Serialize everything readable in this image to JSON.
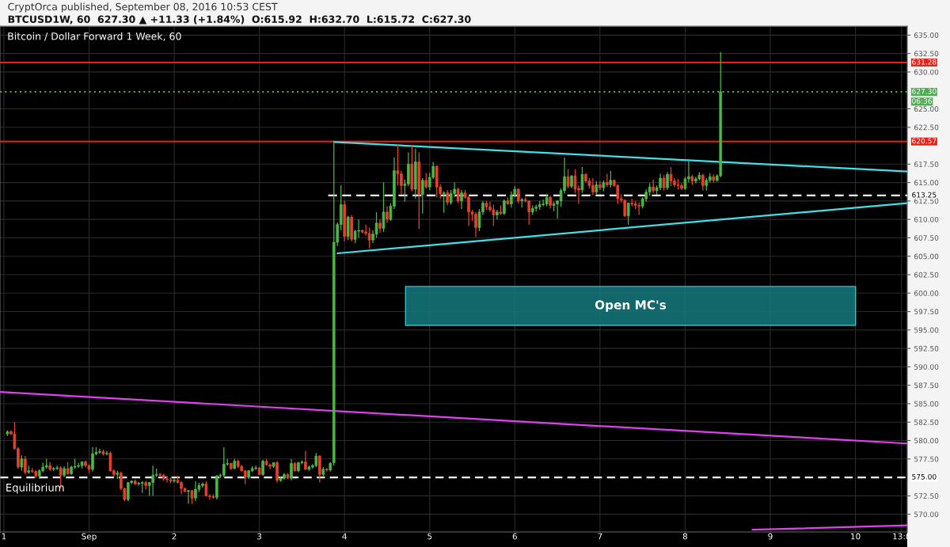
{
  "chart_data": {
    "type": "candlestick",
    "title": "Bitcoin / Dollar Forward 1 Week, 60",
    "subtitle": "CryptOrca published, September 08, 2016 10:53 CEST",
    "annotations": [
      "BTCUSD1W, 60  627.30 ▲ +11.33 (+1.84%)  O:615.92  H:632.70  L:615.72  C:627.30",
      "Equilibrium",
      "06:36",
      "Open MC's"
    ],
    "colors": [
      "#4cb648",
      "#e5412f",
      "#e5412f",
      "#e5412f",
      "#4cb648",
      "#e5412f",
      "#4cb648",
      "#e5412f",
      "#e5412f",
      "#4cb648",
      "#4cb648",
      "#4cb648",
      "#e5412f",
      "#4cb648",
      "#4cb648",
      "#e5412f",
      "#4cb648",
      "#e5412f",
      "#4cb648",
      "#4cb648",
      "#4cb648",
      "#4cb648",
      "#e5412f",
      "#e5412f",
      "#4cb648",
      "#4cb648",
      "#4cb648",
      "#e5412f",
      "#4cb648",
      "#e5412f",
      "#e5412f",
      "#4cb648",
      "#e5412f",
      "#e5412f",
      "#4cb648",
      "#4cb648",
      "#e5412f",
      "#4cb648",
      "#4cb648",
      "#e5412f",
      "#4cb648",
      "#4cb648",
      "#4cb648",
      "#e5412f",
      "#e5412f",
      "#e5412f",
      "#e5412f",
      "#4cb648",
      "#e5412f",
      "#e5412f",
      "#e5412f",
      "#4cb648",
      "#e5412f",
      "#4cb648",
      "#4cb648",
      "#4cb648",
      "#e5412f",
      "#e5412f",
      "#e5412f",
      "#4cb648",
      "#4cb648",
      "#4cb648",
      "#4cb648",
      "#e5412f",
      "#4cb648",
      "#e5412f",
      "#e5412f",
      "#e5412f",
      "#4cb648",
      "#4cb648",
      "#4cb648",
      "#e5412f",
      "#4cb648",
      "#e5412f",
      "#e5412f",
      "#4cb648",
      "#e5412f",
      "#4cb648",
      "#4cb648",
      "#e5412f",
      "#4cb648",
      "#e5412f",
      "#4cb648",
      "#4cb648",
      "#e5412f",
      "#4cb648",
      "#4cb648",
      "#4cb648",
      "#e5412f",
      "#4cb648",
      "#e5412f",
      "#4cb648",
      "#4cb648",
      "#4cb648",
      "#4cb648",
      "#e5412f",
      "#4cb648",
      "#e5412f",
      "#4cb648",
      "#4cb648",
      "#e5412f",
      "#e5412f",
      "#e5412f",
      "#4cb648",
      "#4cb648",
      "#e5412f",
      "#4cb648",
      "#e5412f",
      "#4cb648",
      "#4cb648",
      "#e5412f",
      "#e5412f",
      "#4cb648",
      "#4cb648",
      "#e5412f",
      "#4cb648",
      "#e5412f",
      "#4cb648",
      "#e5412f",
      "#4cb648",
      "#4cb648",
      "#e5412f",
      "#e5412f",
      "#4cb648",
      "#e5412f",
      "#4cb648",
      "#4cb648",
      "#e5412f",
      "#4cb648",
      "#e5412f",
      "#e5412f",
      "#e5412f",
      "#e5412f",
      "#4cb648",
      "#4cb648",
      "#e5412f",
      "#e5412f",
      "#e5412f",
      "#4cb648",
      "#e5412f",
      "#4cb648",
      "#e5412f",
      "#4cb648",
      "#4cb648",
      "#e5412f",
      "#4cb648",
      "#e5412f",
      "#e5412f",
      "#4cb648",
      "#4cb648",
      "#4cb648",
      "#4cb648",
      "#4cb648",
      "#e5412f",
      "#4cb648",
      "#4cb648",
      "#4cb648",
      "#4cb648",
      "#e5412f",
      "#4cb648",
      "#e5412f",
      "#e5412f",
      "#4cb648",
      "#e5412f",
      "#e5412f",
      "#e5412f",
      "#4cb648",
      "#e5412f",
      "#4cb648",
      "#e5412f",
      "#4cb648",
      "#e5412f",
      "#e5412f",
      "#e5412f",
      "#e5412f",
      "#4cb648",
      "#e5412f",
      "#e5412f",
      "#e5412f",
      "#4cb648",
      "#4cb648",
      "#4cb648",
      "#e5412f",
      "#4cb648",
      "#4cb648",
      "#e5412f",
      "#4cb648",
      "#e5412f",
      "#e5412f",
      "#e5412f",
      "#e5412f",
      "#4cb648",
      "#4cb648",
      "#e5412f",
      "#4cb648",
      "#4cb648",
      "#e5412f",
      "#4cb648",
      "#4cb648",
      "#e5412f",
      "#4cb648",
      "#4cb648"
    ],
    "x": [
      "2016-08-31T01:00",
      "2016-08-31T02:00",
      "2016-08-31T03:00",
      "2016-08-31T04:00",
      "2016-08-31T05:00",
      "2016-08-31T06:00",
      "2016-08-31T07:00",
      "2016-08-31T08:00",
      "2016-08-31T09:00",
      "2016-08-31T10:00",
      "2016-08-31T11:00",
      "2016-08-31T12:00",
      "2016-08-31T13:00",
      "2016-08-31T14:00",
      "2016-08-31T15:00",
      "2016-08-31T16:00",
      "2016-08-31T17:00",
      "2016-08-31T18:00",
      "2016-08-31T19:00",
      "2016-08-31T20:00",
      "2016-08-31T21:00",
      "2016-08-31T22:00",
      "2016-08-31T23:00",
      "2016-09-01T00:00",
      "2016-09-01T01:00",
      "2016-09-01T02:00",
      "2016-09-01T03:00",
      "2016-09-01T04:00",
      "2016-09-01T05:00",
      "2016-09-01T06:00",
      "2016-09-01T07:00",
      "2016-09-01T08:00",
      "2016-09-01T09:00",
      "2016-09-01T10:00",
      "2016-09-01T11:00",
      "2016-09-01T12:00",
      "2016-09-01T13:00",
      "2016-09-01T14:00",
      "2016-09-01T15:00",
      "2016-09-01T16:00",
      "2016-09-01T17:00",
      "2016-09-01T18:00",
      "2016-09-01T19:00",
      "2016-09-01T20:00",
      "2016-09-01T21:00",
      "2016-09-01T22:00",
      "2016-09-01T23:00",
      "2016-09-02T00:00",
      "2016-09-02T01:00",
      "2016-09-02T02:00",
      "2016-09-02T03:00",
      "2016-09-02T04:00",
      "2016-09-02T05:00",
      "2016-09-02T06:00",
      "2016-09-02T07:00",
      "2016-09-02T08:00",
      "2016-09-02T09:00",
      "2016-09-02T10:00",
      "2016-09-02T11:00",
      "2016-09-02T12:00",
      "2016-09-02T13:00",
      "2016-09-02T14:00",
      "2016-09-02T15:00",
      "2016-09-02T16:00",
      "2016-09-02T17:00",
      "2016-09-02T18:00",
      "2016-09-02T19:00",
      "2016-09-02T20:00",
      "2016-09-02T21:00",
      "2016-09-02T22:00",
      "2016-09-02T23:00",
      "2016-09-03T00:00",
      "2016-09-03T01:00",
      "2016-09-03T02:00",
      "2016-09-03T03:00",
      "2016-09-03T04:00",
      "2016-09-03T05:00",
      "2016-09-03T06:00",
      "2016-09-03T07:00",
      "2016-09-03T08:00",
      "2016-09-03T09:00",
      "2016-09-03T10:00",
      "2016-09-03T11:00",
      "2016-09-03T12:00",
      "2016-09-03T13:00",
      "2016-09-03T14:00",
      "2016-09-03T15:00",
      "2016-09-03T16:00",
      "2016-09-03T17:00",
      "2016-09-03T18:00",
      "2016-09-03T19:00",
      "2016-09-03T20:00",
      "2016-09-03T21:00",
      "2016-09-03T22:00",
      "2016-09-03T23:00",
      "2016-09-04T00:00",
      "2016-09-04T01:00",
      "2016-09-04T02:00",
      "2016-09-04T03:00",
      "2016-09-04T04:00",
      "2016-09-04T05:00",
      "2016-09-04T06:00",
      "2016-09-04T07:00",
      "2016-09-04T08:00",
      "2016-09-04T09:00",
      "2016-09-04T10:00",
      "2016-09-04T11:00",
      "2016-09-04T12:00",
      "2016-09-04T13:00",
      "2016-09-04T14:00",
      "2016-09-04T15:00",
      "2016-09-04T16:00",
      "2016-09-04T17:00",
      "2016-09-04T18:00",
      "2016-09-04T19:00",
      "2016-09-04T20:00",
      "2016-09-04T21:00",
      "2016-09-04T22:00",
      "2016-09-04T23:00",
      "2016-09-05T00:00",
      "2016-09-05T01:00",
      "2016-09-05T02:00",
      "2016-09-05T03:00",
      "2016-09-05T04:00",
      "2016-09-05T05:00",
      "2016-09-05T06:00",
      "2016-09-05T07:00",
      "2016-09-05T08:00",
      "2016-09-05T09:00",
      "2016-09-05T10:00",
      "2016-09-05T11:00",
      "2016-09-05T12:00",
      "2016-09-05T13:00",
      "2016-09-05T14:00",
      "2016-09-05T15:00",
      "2016-09-05T16:00",
      "2016-09-05T17:00",
      "2016-09-05T18:00",
      "2016-09-05T19:00",
      "2016-09-05T20:00",
      "2016-09-05T21:00",
      "2016-09-05T22:00",
      "2016-09-05T23:00",
      "2016-09-06T00:00",
      "2016-09-06T01:00",
      "2016-09-06T02:00",
      "2016-09-06T03:00",
      "2016-09-06T04:00",
      "2016-09-06T05:00",
      "2016-09-06T06:00",
      "2016-09-06T07:00",
      "2016-09-06T08:00",
      "2016-09-06T09:00",
      "2016-09-06T10:00",
      "2016-09-06T11:00",
      "2016-09-06T12:00",
      "2016-09-06T13:00",
      "2016-09-06T14:00",
      "2016-09-06T15:00",
      "2016-09-06T16:00",
      "2016-09-06T17:00",
      "2016-09-06T18:00",
      "2016-09-06T19:00",
      "2016-09-06T20:00",
      "2016-09-06T21:00",
      "2016-09-06T22:00",
      "2016-09-06T23:00",
      "2016-09-07T00:00",
      "2016-09-07T01:00",
      "2016-09-07T02:00",
      "2016-09-07T03:00",
      "2016-09-07T04:00",
      "2016-09-07T05:00",
      "2016-09-07T06:00",
      "2016-09-07T07:00",
      "2016-09-07T08:00",
      "2016-09-07T09:00",
      "2016-09-07T10:00",
      "2016-09-07T11:00",
      "2016-09-07T12:00",
      "2016-09-07T13:00",
      "2016-09-07T14:00",
      "2016-09-07T15:00",
      "2016-09-07T16:00",
      "2016-09-07T17:00",
      "2016-09-07T18:00",
      "2016-09-07T19:00",
      "2016-09-07T20:00",
      "2016-09-07T21:00",
      "2016-09-07T22:00",
      "2016-09-07T23:00",
      "2016-09-08T00:00",
      "2016-09-08T01:00",
      "2016-09-08T02:00",
      "2016-09-08T03:00",
      "2016-09-08T04:00",
      "2016-09-08T05:00",
      "2016-09-08T06:00",
      "2016-09-08T07:00",
      "2016-09-08T08:00",
      "2016-09-08T09:00",
      "2016-09-08T10:00"
    ],
    "ohlc": [
      [
        580.9,
        581.4,
        580.6,
        581.2
      ],
      [
        581.2,
        581.4,
        580.8,
        580.9
      ],
      [
        580.9,
        582.5,
        578.8,
        578.9
      ],
      [
        578.9,
        579.1,
        576.2,
        576.4
      ],
      [
        576.4,
        578.0,
        575.9,
        577.5
      ],
      [
        577.5,
        577.9,
        575.4,
        575.7
      ],
      [
        575.7,
        576.6,
        575.5,
        575.9
      ],
      [
        575.9,
        576.3,
        575.6,
        575.8
      ],
      [
        575.8,
        576.0,
        574.9,
        575.2
      ],
      [
        575.2,
        576.1,
        574.8,
        575.9
      ],
      [
        575.9,
        577.0,
        575.7,
        576.4
      ],
      [
        576.4,
        577.5,
        576.2,
        576.6
      ],
      [
        576.6,
        577.1,
        575.9,
        576.1
      ],
      [
        576.1,
        576.4,
        575.9,
        576.2
      ],
      [
        576.2,
        576.6,
        576.0,
        576.3
      ],
      [
        576.3,
        576.5,
        573.5,
        575.3
      ],
      [
        575.3,
        576.5,
        575.0,
        576.2
      ],
      [
        576.2,
        577.1,
        575.4,
        575.5
      ],
      [
        575.5,
        576.6,
        575.3,
        576.4
      ],
      [
        576.4,
        577.5,
        576.2,
        576.5
      ],
      [
        576.5,
        577.0,
        576.3,
        576.6
      ],
      [
        576.6,
        577.2,
        576.2,
        577.1
      ],
      [
        577.1,
        577.3,
        576.4,
        576.6
      ],
      [
        576.6,
        576.8,
        575.6,
        576.1
      ],
      [
        576.1,
        579.1,
        575.8,
        578.2
      ],
      [
        578.2,
        579.1,
        578.0,
        578.4
      ],
      [
        578.4,
        578.9,
        578.2,
        578.5
      ],
      [
        578.5,
        578.8,
        578.0,
        578.2
      ],
      [
        578.2,
        578.6,
        578.0,
        578.3
      ],
      [
        578.3,
        578.5,
        575.8,
        575.9
      ],
      [
        575.9,
        576.1,
        575.1,
        575.4
      ],
      [
        575.4,
        575.9,
        574.8,
        575.6
      ],
      [
        575.6,
        575.8,
        573.3,
        573.5
      ],
      [
        573.5,
        573.6,
        571.8,
        572.0
      ],
      [
        572.0,
        574.4,
        571.8,
        574.3
      ],
      [
        574.3,
        574.6,
        574.1,
        574.5
      ],
      [
        574.5,
        574.7,
        574.0,
        574.1
      ],
      [
        574.1,
        574.4,
        573.9,
        574.2
      ],
      [
        574.2,
        574.5,
        572.9,
        574.3
      ],
      [
        574.3,
        574.5,
        573.4,
        573.9
      ],
      [
        573.9,
        574.4,
        572.5,
        574.3
      ],
      [
        574.3,
        576.6,
        572.5,
        575.3
      ],
      [
        575.3,
        576.2,
        575.1,
        575.4
      ],
      [
        575.4,
        575.6,
        575.0,
        575.3
      ],
      [
        575.3,
        575.5,
        574.6,
        574.8
      ],
      [
        574.8,
        575.2,
        574.3,
        574.7
      ],
      [
        574.7,
        575.0,
        574.2,
        574.5
      ],
      [
        574.5,
        574.9,
        574.3,
        574.6
      ],
      [
        574.6,
        575.2,
        574.2,
        574.3
      ],
      [
        574.3,
        574.5,
        572.7,
        573.5
      ],
      [
        573.5,
        573.6,
        573.0,
        573.1
      ],
      [
        573.1,
        573.3,
        571.4,
        573.2
      ],
      [
        573.2,
        573.3,
        571.4,
        572.2
      ],
      [
        572.2,
        574.5,
        571.8,
        573.4
      ],
      [
        573.4,
        574.3,
        573.0,
        573.9
      ],
      [
        573.9,
        574.3,
        573.6,
        574.1
      ],
      [
        574.1,
        574.5,
        572.4,
        572.5
      ],
      [
        572.5,
        572.7,
        572.0,
        572.4
      ],
      [
        572.4,
        572.7,
        572.1,
        572.3
      ],
      [
        572.3,
        575.3,
        572.0,
        575.2
      ],
      [
        575.2,
        575.5,
        574.9,
        575.3
      ],
      [
        575.3,
        579.1,
        575.0,
        576.8
      ],
      [
        576.8,
        577.5,
        576.6,
        576.9
      ],
      [
        576.9,
        577.0,
        576.0,
        576.2
      ],
      [
        576.2,
        577.5,
        576.1,
        577.2
      ],
      [
        577.2,
        577.4,
        576.3,
        576.5
      ],
      [
        576.5,
        576.7,
        575.8,
        575.9
      ],
      [
        575.9,
        576.0,
        574.1,
        575.0
      ],
      [
        575.0,
        576.0,
        574.8,
        575.9
      ],
      [
        575.9,
        576.5,
        575.7,
        576.2
      ],
      [
        576.2,
        576.6,
        576.0,
        576.3
      ],
      [
        576.3,
        576.4,
        575.3,
        575.4
      ],
      [
        575.4,
        577.4,
        575.2,
        577.2
      ],
      [
        577.2,
        577.5,
        576.6,
        576.7
      ],
      [
        576.7,
        576.9,
        576.1,
        576.5
      ],
      [
        576.5,
        577.0,
        576.3,
        577.0
      ],
      [
        577.0,
        577.2,
        574.3,
        574.6
      ],
      [
        574.6,
        575.1,
        574.4,
        574.9
      ],
      [
        574.9,
        575.6,
        574.7,
        575.4
      ],
      [
        575.4,
        575.6,
        574.8,
        574.9
      ],
      [
        574.9,
        577.5,
        574.6,
        576.9
      ],
      [
        576.9,
        577.1,
        575.8,
        575.9
      ],
      [
        575.9,
        577.1,
        575.7,
        577.0
      ],
      [
        577.0,
        577.3,
        576.8,
        577.1
      ],
      [
        577.1,
        578.6,
        576.0,
        576.1
      ],
      [
        576.1,
        576.6,
        575.9,
        576.4
      ],
      [
        576.4,
        576.8,
        576.2,
        576.6
      ],
      [
        576.6,
        578.3,
        576.4,
        577.9
      ],
      [
        577.9,
        578.0,
        574.3,
        575.4
      ],
      [
        575.4,
        576.4,
        575.0,
        576.1
      ],
      [
        576.1,
        576.3,
        575.8,
        576.0
      ],
      [
        576.0,
        577.1,
        575.8,
        576.9
      ],
      [
        577.0,
        620.5,
        576.6,
        606.9
      ],
      [
        606.9,
        609.6,
        606.4,
        609.3
      ],
      [
        609.3,
        614.6,
        608.5,
        612.0
      ],
      [
        612.0,
        612.5,
        607.0,
        607.7
      ],
      [
        607.7,
        610.5,
        607.2,
        610.3
      ],
      [
        610.3,
        610.6,
        607.0,
        607.3
      ],
      [
        607.3,
        608.6,
        606.8,
        608.4
      ],
      [
        608.4,
        610.0,
        607.5,
        608.5
      ],
      [
        608.5,
        608.6,
        608.1,
        608.3
      ],
      [
        608.3,
        609.3,
        607.8,
        608.1
      ],
      [
        608.1,
        608.9,
        606.1,
        607.2
      ],
      [
        607.2,
        608.5,
        606.8,
        608.0
      ],
      [
        608.0,
        611.0,
        607.5,
        609.5
      ],
      [
        609.5,
        610.0,
        608.2,
        608.8
      ],
      [
        608.8,
        615.0,
        608.3,
        611.0
      ],
      [
        611.0,
        611.8,
        609.5,
        610.0
      ],
      [
        610.0,
        612.2,
        609.8,
        611.8
      ],
      [
        611.8,
        618.4,
        611.4,
        616.6
      ],
      [
        616.6,
        620.1,
        614.6,
        616.2
      ],
      [
        616.2,
        616.6,
        613.4,
        614.6
      ],
      [
        614.6,
        615.4,
        612.4,
        614.8
      ],
      [
        614.8,
        619.1,
        614.5,
        617.5
      ],
      [
        617.5,
        620.1,
        613.8,
        614.1
      ],
      [
        614.1,
        619.6,
        612.8,
        617.8
      ],
      [
        617.8,
        619.1,
        608.7,
        613.4
      ],
      [
        613.4,
        615.6,
        610.8,
        615.3
      ],
      [
        615.3,
        616.3,
        614.2,
        614.4
      ],
      [
        614.4,
        616.3,
        614.0,
        615.7
      ],
      [
        615.7,
        617.8,
        615.5,
        617.2
      ],
      [
        617.2,
        617.3,
        613.0,
        614.4
      ],
      [
        614.4,
        614.8,
        612.8,
        613.5
      ],
      [
        613.5,
        613.8,
        610.9,
        613.6
      ],
      [
        613.6,
        614.0,
        611.9,
        612.3
      ],
      [
        612.3,
        614.0,
        612.0,
        613.5
      ],
      [
        613.5,
        615.0,
        613.0,
        614.1
      ],
      [
        614.1,
        614.3,
        612.2,
        612.5
      ],
      [
        612.5,
        614.0,
        611.4,
        613.6
      ],
      [
        613.6,
        614.0,
        612.8,
        613.0
      ],
      [
        613.0,
        613.2,
        609.1,
        611.0
      ],
      [
        611.0,
        611.3,
        609.8,
        610.7
      ],
      [
        610.7,
        611.0,
        607.6,
        608.9
      ],
      [
        608.9,
        611.4,
        608.4,
        611.0
      ],
      [
        611.0,
        612.5,
        610.6,
        612.2
      ],
      [
        612.2,
        612.5,
        611.3,
        611.7
      ],
      [
        611.7,
        612.4,
        611.0,
        611.3
      ],
      [
        611.3,
        612.0,
        609.1,
        610.6
      ],
      [
        610.6,
        611.3,
        610.0,
        611.0
      ],
      [
        611.0,
        611.9,
        610.6,
        610.8
      ],
      [
        610.8,
        612.7,
        610.6,
        612.5
      ],
      [
        612.5,
        613.0,
        612.0,
        612.1
      ],
      [
        612.1,
        613.8,
        611.6,
        613.3
      ],
      [
        613.3,
        614.5,
        613.0,
        614.1
      ],
      [
        614.1,
        614.2,
        612.2,
        612.5
      ],
      [
        612.5,
        612.9,
        611.6,
        612.7
      ],
      [
        612.7,
        613.0,
        612.3,
        612.5
      ],
      [
        612.5,
        612.6,
        609.3,
        611.0
      ],
      [
        611.0,
        611.9,
        610.6,
        611.5
      ],
      [
        611.5,
        612.0,
        611.1,
        611.7
      ],
      [
        611.7,
        612.5,
        611.3,
        612.0
      ],
      [
        612.0,
        612.7,
        611.8,
        612.1
      ],
      [
        612.1,
        613.4,
        611.8,
        613.0
      ],
      [
        613.0,
        613.2,
        611.5,
        611.9
      ],
      [
        611.9,
        612.4,
        611.1,
        612.1
      ],
      [
        612.1,
        612.6,
        610.1,
        612.5
      ],
      [
        612.5,
        614.2,
        611.7,
        613.9
      ],
      [
        613.9,
        618.4,
        613.5,
        615.8
      ],
      [
        615.8,
        616.8,
        614.2,
        614.5
      ],
      [
        614.5,
        616.0,
        614.2,
        615.9
      ],
      [
        615.9,
        616.8,
        613.6,
        614.1
      ],
      [
        614.2,
        614.6,
        612.1,
        614.0
      ],
      [
        614.0,
        617.1,
        613.6,
        616.1
      ],
      [
        616.1,
        616.3,
        615.0,
        615.2
      ],
      [
        615.2,
        615.6,
        614.2,
        614.6
      ],
      [
        614.6,
        615.6,
        613.3,
        613.7
      ],
      [
        613.7,
        615.2,
        613.4,
        614.7
      ],
      [
        614.7,
        615.2,
        614.0,
        614.3
      ],
      [
        614.3,
        615.3,
        613.8,
        615.0
      ],
      [
        615.0,
        616.2,
        614.4,
        614.7
      ],
      [
        614.7,
        616.6,
        614.3,
        615.3
      ],
      [
        615.3,
        615.4,
        614.4,
        614.6
      ],
      [
        614.6,
        614.8,
        612.1,
        612.8
      ],
      [
        612.8,
        613.4,
        612.3,
        612.6
      ],
      [
        612.6,
        612.7,
        610.3,
        610.5
      ],
      [
        610.5,
        612.3,
        609.3,
        612.2
      ],
      [
        612.2,
        612.8,
        611.8,
        612.1
      ],
      [
        612.1,
        612.5,
        611.4,
        611.9
      ],
      [
        611.9,
        612.3,
        610.6,
        611.8
      ],
      [
        611.8,
        613.0,
        611.5,
        612.8
      ],
      [
        612.8,
        614.1,
        612.4,
        613.7
      ],
      [
        613.7,
        614.9,
        613.2,
        614.4
      ],
      [
        614.4,
        615.4,
        613.6,
        613.9
      ],
      [
        613.9,
        614.6,
        613.4,
        614.3
      ],
      [
        614.3,
        616.2,
        614.0,
        615.6
      ],
      [
        615.6,
        616.0,
        613.9,
        614.3
      ],
      [
        614.3,
        616.4,
        614.0,
        616.1
      ],
      [
        616.1,
        617.1,
        614.5,
        615.2
      ],
      [
        615.2,
        615.6,
        614.4,
        614.7
      ],
      [
        614.7,
        615.5,
        614.1,
        614.6
      ],
      [
        614.6,
        614.9,
        614.0,
        614.2
      ],
      [
        614.2,
        615.8,
        614.0,
        615.5
      ],
      [
        615.5,
        618.2,
        615.0,
        615.8
      ],
      [
        615.8,
        616.0,
        614.7,
        615.2
      ],
      [
        615.2,
        615.8,
        614.9,
        615.5
      ],
      [
        615.5,
        616.4,
        615.3,
        616.0
      ],
      [
        616.0,
        616.2,
        613.9,
        614.6
      ],
      [
        614.6,
        615.6,
        613.9,
        615.3
      ],
      [
        615.3,
        616.3,
        615.0,
        615.8
      ],
      [
        615.8,
        616.1,
        615.0,
        615.3
      ],
      [
        615.3,
        616.1,
        615.1,
        615.9
      ],
      [
        615.92,
        632.7,
        615.72,
        627.3
      ]
    ],
    "series": [
      {
        "type": "line",
        "color": "#3fe0e6",
        "x": [
          "2016-09-03T21:00",
          "2016-09-10T14:36"
        ],
        "values": [
          620.5,
          616.5
        ]
      },
      {
        "type": "line",
        "color": "#3fe0e6",
        "x": [
          "2016-09-03T22:00",
          "2016-09-10T14:36"
        ],
        "values": [
          605.4,
          612.2
        ]
      },
      {
        "type": "line",
        "color": "#e040f0",
        "x": [
          "2016-08-30T22:54",
          "2016-09-10T14:36"
        ],
        "values": [
          586.6,
          579.6
        ]
      },
      {
        "type": "line",
        "color": "#e040f0",
        "x": [
          "2016-09-08T19:00",
          "2016-09-10T14:36"
        ],
        "values": [
          567.9,
          568.5
        ]
      },
      {
        "type": "line",
        "name": "613.25",
        "color": "#ffffff",
        "line_style": "dashed",
        "x": [
          "2016-09-03T19:24",
          "2016-09-10T14:36"
        ],
        "values": [
          613.25,
          613.25
        ]
      }
    ],
    "ref_lines": [
      {
        "axis": "y",
        "value": 631.28,
        "label": "631.28",
        "color": "#e5231b"
      },
      {
        "axis": "y",
        "value": 627.3,
        "label": "627.30",
        "color": "#4caf50",
        "line_style": "dotted"
      },
      {
        "axis": "y",
        "value": 620.57,
        "label": "620.57",
        "color": "#e5231b"
      },
      {
        "axis": "y",
        "value": 575.0,
        "label": "575.00",
        "color": "#ffffff",
        "line_style": "dashed"
      }
    ],
    "xlim": [
      "2016-08-30T22:54",
      "2016-09-10T14:36"
    ],
    "ylim": [
      567.6,
      636.2
    ],
    "xticks": [
      {
        "value": "2016-08-31",
        "label": "1"
      },
      {
        "value": "2016-09-01",
        "label": "Sep"
      },
      {
        "value": "2016-09-02",
        "label": "2"
      },
      {
        "value": "2016-09-03",
        "label": "3"
      },
      {
        "value": "2016-09-04",
        "label": "4"
      },
      {
        "value": "2016-09-05",
        "label": "5"
      },
      {
        "value": "2016-09-06",
        "label": "6"
      },
      {
        "value": "2016-09-07",
        "label": "7"
      },
      {
        "value": "2016-09-08",
        "label": "8"
      },
      {
        "value": "2016-09-09",
        "label": "9"
      },
      {
        "value": "2016-09-10",
        "label": "10"
      },
      {
        "value": "2016-09-10T13:00",
        "label": "13:0"
      }
    ],
    "yticks": [
      {
        "value": 570,
        "label": "570.00"
      },
      {
        "value": 572.5,
        "label": "572.50"
      },
      {
        "value": 577.5,
        "label": "577.50"
      },
      {
        "value": 580,
        "label": "580.00"
      },
      {
        "value": 582.5,
        "label": "582.50"
      },
      {
        "value": 585,
        "label": "585.00"
      },
      {
        "value": 587.5,
        "label": "587.50"
      },
      {
        "value": 590,
        "label": "590.00"
      },
      {
        "value": 592.5,
        "label": "592.50"
      },
      {
        "value": 595,
        "label": "595.00"
      },
      {
        "value": 597.5,
        "label": "597.50"
      },
      {
        "value": 600,
        "label": "600.00"
      },
      {
        "value": 602.5,
        "label": "602.50"
      },
      {
        "value": 605,
        "label": "605.00"
      },
      {
        "value": 607.5,
        "label": "607.50"
      },
      {
        "value": 610,
        "label": "610.00"
      },
      {
        "value": 612.5,
        "label": "612.50"
      },
      {
        "value": 615,
        "label": "615.00"
      },
      {
        "value": 617.5,
        "label": "617.50"
      },
      {
        "value": 622.5,
        "label": "622.50"
      },
      {
        "value": 625,
        "label": "625.00"
      },
      {
        "value": 630,
        "label": "630.00"
      },
      {
        "value": 632.5,
        "label": "632.50"
      },
      {
        "value": 635,
        "label": "635.00"
      }
    ],
    "grid": true
  }
}
